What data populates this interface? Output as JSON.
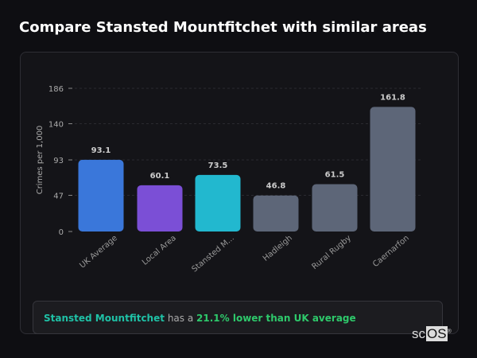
{
  "title": "Compare Stansted Mountfitchet with similar areas",
  "chart_data": {
    "type": "bar",
    "ylabel": "Crimes per 1,000",
    "ylim": [
      0,
      186
    ],
    "yticks": [
      0,
      47,
      93,
      140,
      186
    ],
    "categories": [
      "UK Average",
      "Local Area",
      "Stansted M...",
      "Hadleigh",
      "Rural Rugby",
      "Caernarfon"
    ],
    "values": [
      93.1,
      60.1,
      73.5,
      46.8,
      61.5,
      161.8
    ],
    "value_labels": [
      "93.1",
      "60.1",
      "73.5",
      "46.8",
      "61.5",
      "161.8"
    ],
    "colors": [
      "#3a77da",
      "#7b4fd6",
      "#22b8cf",
      "#5d6678",
      "#5d6678",
      "#5d6678"
    ],
    "grid": true
  },
  "summary": {
    "area": "Stansted Mountfitchet",
    "connector": "has a",
    "comparison": "21.1% lower than UK average"
  },
  "logo": {
    "prefix": "sc",
    "boxed": "OS",
    "mark": "®"
  }
}
